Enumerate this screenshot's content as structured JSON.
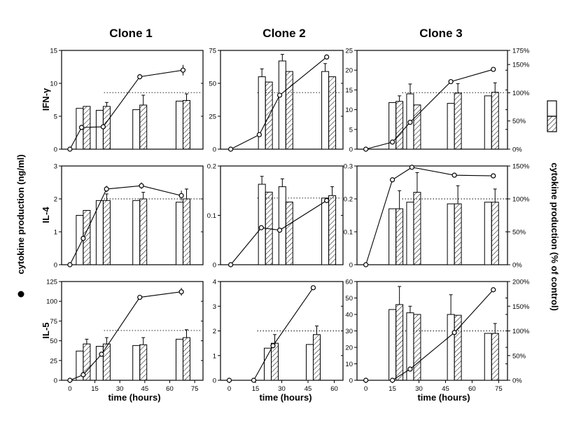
{
  "figure": {
    "columns": [
      "Clone 1",
      "Clone 2",
      "Clone 3"
    ],
    "rows": [
      "IFN-γ",
      "IL-4",
      "IL-5"
    ],
    "left_axis_label": "cytokine production (ng/ml)",
    "right_axis_label": "cytokine production (% of control)",
    "x_axis_label": "time (hours)"
  },
  "chart_data": [
    {
      "type": "bar",
      "panel": "Clone 1 IFN-γ",
      "xlim": [
        -5,
        80
      ],
      "ylim": [
        0,
        15
      ],
      "yticks": [
        0,
        5,
        10,
        15
      ],
      "xticks": [],
      "right_ticks": [],
      "dotted_level": 8.6,
      "bars": [
        {
          "x": 8,
          "left": 6.2,
          "right": 6.5,
          "err": 0
        },
        {
          "x": 20,
          "left": 5.9,
          "right": 6.5,
          "err": 0.6
        },
        {
          "x": 42,
          "left": 6.0,
          "right": 6.7,
          "err": 1.5
        },
        {
          "x": 68,
          "left": 7.3,
          "right": 7.4,
          "err": 1.0
        }
      ],
      "line": [
        [
          0,
          0
        ],
        [
          7,
          3.3
        ],
        [
          20,
          3.4
        ],
        [
          42,
          11
        ],
        [
          68,
          12
        ]
      ],
      "line_err": [
        0,
        0.4,
        0.4,
        0.4,
        0.8
      ]
    },
    {
      "type": "bar",
      "panel": "Clone 2 IFN-γ",
      "xlim": [
        -5,
        55
      ],
      "ylim": [
        0,
        75
      ],
      "yticks": [
        0,
        25,
        50,
        75
      ],
      "xticks": [],
      "right_ticks": [],
      "dotted_level": 43,
      "bars": [
        {
          "x": 17,
          "left": 55,
          "right": 51,
          "err": 6
        },
        {
          "x": 27,
          "left": 67,
          "right": 59,
          "err": 5
        },
        {
          "x": 48,
          "left": 59,
          "right": 55,
          "err": 6
        }
      ],
      "line": [
        [
          0,
          0
        ],
        [
          14,
          11
        ],
        [
          24,
          41
        ],
        [
          47,
          70
        ]
      ],
      "line_err": [
        0,
        0,
        0,
        0
      ]
    },
    {
      "type": "bar",
      "panel": "Clone 3 IFN-γ",
      "xlim": [
        -5,
        80
      ],
      "ylim": [
        0,
        25
      ],
      "yticks": [
        0,
        5,
        10,
        15,
        20,
        25
      ],
      "xticks": [],
      "right_ticks": [
        "0%",
        "50%",
        "100%",
        "150%",
        "175%"
      ],
      "right_max": 175,
      "dotted_level": 14.3,
      "bars": [
        {
          "x": 17,
          "left": 11.8,
          "right": 12.1,
          "err": 1.4
        },
        {
          "x": 27,
          "left": 14.0,
          "right": 11.2,
          "err": 2.5
        },
        {
          "x": 50,
          "left": 11.6,
          "right": 14.2,
          "err": 2.4
        },
        {
          "x": 71,
          "left": 13.5,
          "right": 14.4,
          "err": 2.4
        }
      ],
      "line": [
        [
          0,
          0
        ],
        [
          15,
          1.8
        ],
        [
          25,
          6.8
        ],
        [
          48,
          17.1
        ],
        [
          72,
          20.2
        ]
      ],
      "line_err": [
        0,
        0,
        0,
        0,
        0
      ]
    },
    {
      "type": "bar",
      "panel": "Clone 1 IL-4",
      "xlim": [
        -5,
        80
      ],
      "ylim": [
        0,
        3
      ],
      "yticks": [
        0,
        1,
        2,
        3
      ],
      "xticks": [],
      "right_ticks": [],
      "dotted_level": 2.0,
      "bars": [
        {
          "x": 8,
          "left": 1.5,
          "right": 1.65,
          "err": 0
        },
        {
          "x": 20,
          "left": 1.95,
          "right": 1.95,
          "err": 0.2
        },
        {
          "x": 42,
          "left": 1.95,
          "right": 2.0,
          "err": 0.2
        },
        {
          "x": 68,
          "left": 1.9,
          "right": 2.0,
          "err": 0.3
        }
      ],
      "line": [
        [
          0,
          0
        ],
        [
          8,
          0.8
        ],
        [
          22,
          2.3
        ],
        [
          43,
          2.4
        ],
        [
          67,
          2.1
        ]
      ],
      "line_err": [
        0,
        0.15,
        0.1,
        0.1,
        0.15
      ]
    },
    {
      "type": "bar",
      "panel": "Clone 2 IL-4",
      "xlim": [
        -5,
        55
      ],
      "ylim": [
        0,
        0.2
      ],
      "yticks": [
        0,
        0.1,
        0.2
      ],
      "xticks": [],
      "right_ticks": [],
      "dotted_level": 0.135,
      "bars": [
        {
          "x": 17,
          "left": 0.163,
          "right": 0.147,
          "err": 0.016
        },
        {
          "x": 27,
          "left": 0.158,
          "right": 0.127,
          "err": 0.016
        },
        {
          "x": 48,
          "left": 0.135,
          "right": 0.14,
          "err": 0.018
        }
      ],
      "line": [
        [
          0,
          0
        ],
        [
          15,
          0.075
        ],
        [
          24,
          0.07
        ],
        [
          47,
          0.13
        ]
      ],
      "line_err": [
        0,
        0,
        0,
        0
      ]
    },
    {
      "type": "bar",
      "panel": "Clone 3 IL-4",
      "xlim": [
        -5,
        80
      ],
      "ylim": [
        0,
        0.3
      ],
      "yticks": [
        0,
        0.1,
        0.2,
        0.3
      ],
      "xticks": [],
      "right_ticks": [
        "0%",
        "50%",
        "100%",
        "150%"
      ],
      "right_max": 150,
      "dotted_level": 0.2,
      "bars": [
        {
          "x": 17,
          "left": 0.17,
          "right": 0.17,
          "err": 0.055
        },
        {
          "x": 27,
          "left": 0.19,
          "right": 0.22,
          "err": 0.06
        },
        {
          "x": 50,
          "left": 0.185,
          "right": 0.185,
          "err": 0.055
        },
        {
          "x": 71,
          "left": 0.19,
          "right": 0.19,
          "err": 0.04
        }
      ],
      "line": [
        [
          0,
          0
        ],
        [
          15,
          0.258
        ],
        [
          26,
          0.296
        ],
        [
          50,
          0.272
        ],
        [
          72,
          0.27
        ]
      ],
      "line_err": [
        0,
        0,
        0,
        0,
        0
      ]
    },
    {
      "type": "bar",
      "panel": "Clone 1 IL-5",
      "xlim": [
        -5,
        80
      ],
      "ylim": [
        0,
        125
      ],
      "yticks": [
        0,
        25,
        50,
        75,
        100,
        125
      ],
      "xticks": [
        0,
        15,
        30,
        45,
        60,
        75
      ],
      "right_ticks": [],
      "dotted_level": 63,
      "bars": [
        {
          "x": 8,
          "left": 37,
          "right": 46,
          "err": 6
        },
        {
          "x": 20,
          "left": 43,
          "right": 46,
          "err": 8
        },
        {
          "x": 42,
          "left": 44,
          "right": 45,
          "err": 9
        },
        {
          "x": 68,
          "left": 52,
          "right": 54,
          "err": 10
        }
      ],
      "line": [
        [
          0,
          0
        ],
        [
          8,
          7
        ],
        [
          19,
          33
        ],
        [
          42,
          105
        ],
        [
          67,
          112
        ]
      ],
      "line_err": [
        0,
        0,
        0,
        2,
        5
      ]
    },
    {
      "type": "bar",
      "panel": "Clone 2 IL-5",
      "xlim": [
        -5,
        65
      ],
      "ylim": [
        0,
        4
      ],
      "yticks": [
        0,
        1,
        2,
        3,
        4
      ],
      "xticks": [
        0,
        15,
        30,
        45,
        60
      ],
      "right_ticks": [],
      "dotted_level": 2.0,
      "bars": [
        {
          "x": 24,
          "left": 1.3,
          "right": 1.5,
          "err": 0.35
        },
        {
          "x": 48,
          "left": 1.45,
          "right": 1.85,
          "err": 0.35
        }
      ],
      "line": [
        [
          0,
          0
        ],
        [
          14,
          0
        ],
        [
          25,
          1.4
        ],
        [
          48,
          3.75
        ]
      ],
      "line_err": [
        0,
        0,
        0,
        0
      ]
    },
    {
      "type": "bar",
      "panel": "Clone 3 IL-5",
      "xlim": [
        -5,
        80
      ],
      "ylim": [
        0,
        60
      ],
      "yticks": [
        0,
        10,
        20,
        30,
        40,
        50,
        60
      ],
      "xticks": [
        0,
        15,
        30,
        45,
        60,
        75
      ],
      "right_ticks": [
        "0%",
        "50%",
        "100%",
        "150%",
        "200%"
      ],
      "right_max": 200,
      "dotted_level": 30,
      "bars": [
        {
          "x": 17,
          "left": 43,
          "right": 46,
          "err": 11
        },
        {
          "x": 27,
          "left": 41,
          "right": 40,
          "err": 4
        },
        {
          "x": 50,
          "left": 40,
          "right": 39.5,
          "err": 12
        },
        {
          "x": 71,
          "left": 28.5,
          "right": 28.5,
          "err": 6
        }
      ],
      "line": [
        [
          0,
          0
        ],
        [
          15,
          0
        ],
        [
          25,
          6.8
        ],
        [
          50,
          29
        ],
        [
          72,
          55
        ]
      ],
      "line_err": [
        0,
        0,
        0,
        0,
        0
      ]
    }
  ]
}
